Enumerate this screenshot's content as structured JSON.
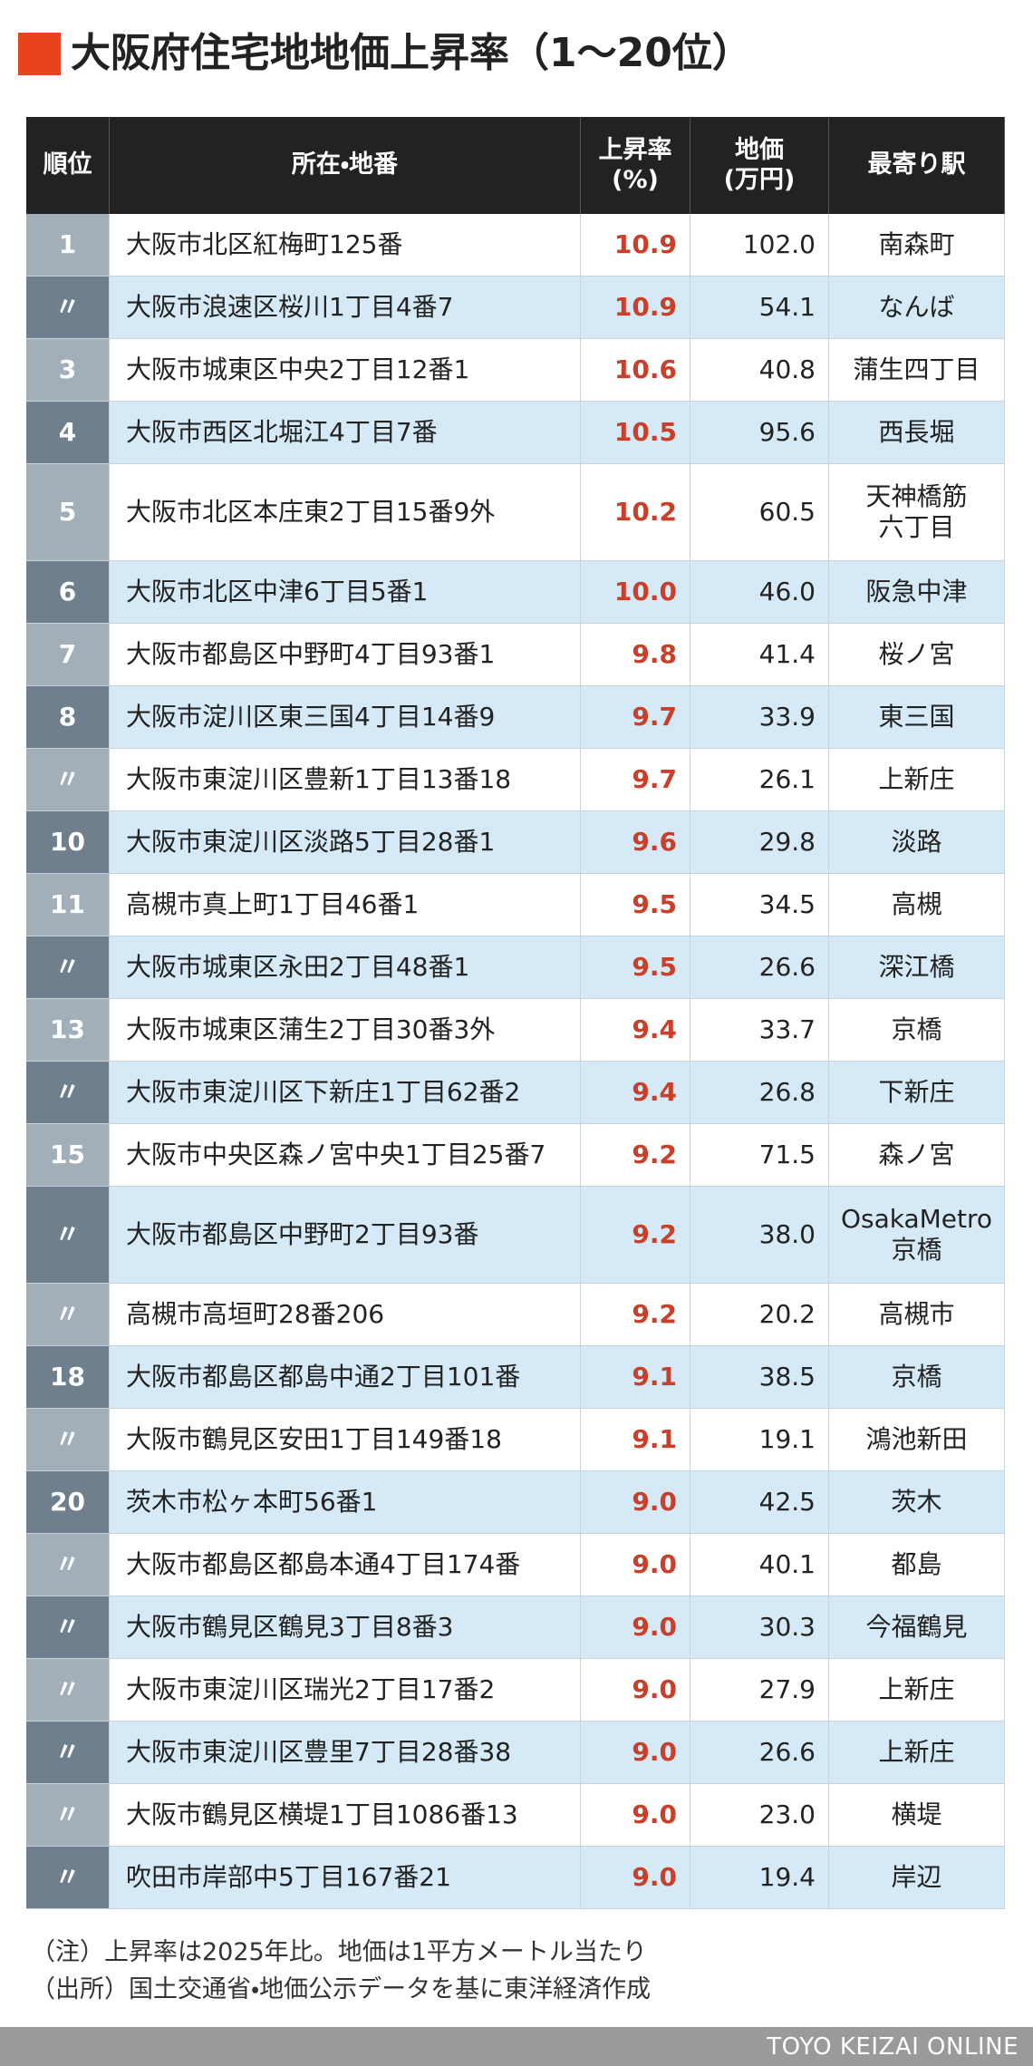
{
  "header": {
    "title": "大阪府住宅地地価上昇率（1〜20位）"
  },
  "table": {
    "columns": [
      [
        "順位"
      ],
      [
        "所在・地番"
      ],
      [
        "上昇率",
        "(%)"
      ],
      [
        "地価",
        "(万円)"
      ],
      [
        "最寄り駅"
      ]
    ],
    "rows": [
      [
        "1",
        "大阪市北区紅梅町125番",
        "10.9",
        "102.0",
        [
          "南森町"
        ]
      ],
      [
        "〃",
        "大阪市浪速区桜川1丁目4番7",
        "10.9",
        "54.1",
        [
          "なんば"
        ]
      ],
      [
        "3",
        "大阪市城東区中央2丁目12番1",
        "10.6",
        "40.8",
        [
          "蒲生四丁目"
        ]
      ],
      [
        "4",
        "大阪市西区北堀江4丁目7番",
        "10.5",
        "95.6",
        [
          "西長堀"
        ]
      ],
      [
        "5",
        "大阪市北区本庄東2丁目15番9外",
        "10.2",
        "60.5",
        [
          "天神橋筋",
          "六丁目"
        ]
      ],
      [
        "6",
        "大阪市北区中津6丁目5番1",
        "10.0",
        "46.0",
        [
          "阪急中津"
        ]
      ],
      [
        "7",
        "大阪市都島区中野町4丁目93番1",
        "9.8",
        "41.4",
        [
          "桜ノ宮"
        ]
      ],
      [
        "8",
        "大阪市淀川区東三国4丁目14番9",
        "9.7",
        "33.9",
        [
          "東三国"
        ]
      ],
      [
        "〃",
        "大阪市東淀川区豊新1丁目13番18",
        "9.7",
        "26.1",
        [
          "上新庄"
        ]
      ],
      [
        "10",
        "大阪市東淀川区淡路5丁目28番1",
        "9.6",
        "29.8",
        [
          "淡路"
        ]
      ],
      [
        "11",
        "高槻市真上町1丁目46番1",
        "9.5",
        "34.5",
        [
          "高槻"
        ]
      ],
      [
        "〃",
        "大阪市城東区永田2丁目48番1",
        "9.5",
        "26.6",
        [
          "深江橋"
        ]
      ],
      [
        "13",
        "大阪市城東区蒲生2丁目30番3外",
        "9.4",
        "33.7",
        [
          "京橋"
        ]
      ],
      [
        "〃",
        "大阪市東淀川区下新庄1丁目62番2",
        "9.4",
        "26.8",
        [
          "下新庄"
        ]
      ],
      [
        "15",
        "大阪市中央区森ノ宮中央1丁目25番7",
        "9.2",
        "71.5",
        [
          "森ノ宮"
        ]
      ],
      [
        "〃",
        "大阪市都島区中野町2丁目93番",
        "9.2",
        "38.0",
        [
          "OsakaMetro",
          "京橋"
        ]
      ],
      [
        "〃",
        "高槻市高垣町28番206",
        "9.2",
        "20.2",
        [
          "高槻市"
        ]
      ],
      [
        "18",
        "大阪市都島区都島中通2丁目101番",
        "9.1",
        "38.5",
        [
          "京橋"
        ]
      ],
      [
        "〃",
        "大阪市鶴見区安田1丁目149番18",
        "9.1",
        "19.1",
        [
          "鴻池新田"
        ]
      ],
      [
        "20",
        "茨木市松ヶ本町56番1",
        "9.0",
        "42.5",
        [
          "茨木"
        ]
      ],
      [
        "〃",
        "大阪市都島区都島本通4丁目174番",
        "9.0",
        "40.1",
        [
          "都島"
        ]
      ],
      [
        "〃",
        "大阪市鶴見区鶴見3丁目8番3",
        "9.0",
        "30.3",
        [
          "今福鶴見"
        ]
      ],
      [
        "〃",
        "大阪市東淀川区瑞光2丁目17番2",
        "9.0",
        "27.9",
        [
          "上新庄"
        ]
      ],
      [
        "〃",
        "大阪市東淀川区豊里7丁目28番38",
        "9.0",
        "26.6",
        [
          "上新庄"
        ]
      ],
      [
        "〃",
        "大阪市鶴見区横堤1丁目1086番13",
        "9.0",
        "23.0",
        [
          "横堤"
        ]
      ],
      [
        "〃",
        "吹田市岸部中5丁目167番21",
        "9.0",
        "19.4",
        [
          "岸辺"
        ]
      ]
    ]
  },
  "notes": [
    "（注）上昇率は2025年比。地価は1平方メートル当たり",
    "（出所）国土交通省・地価公示データを基に東洋経済作成"
  ],
  "footer": "TOYO KEIZAI ONLINE"
}
